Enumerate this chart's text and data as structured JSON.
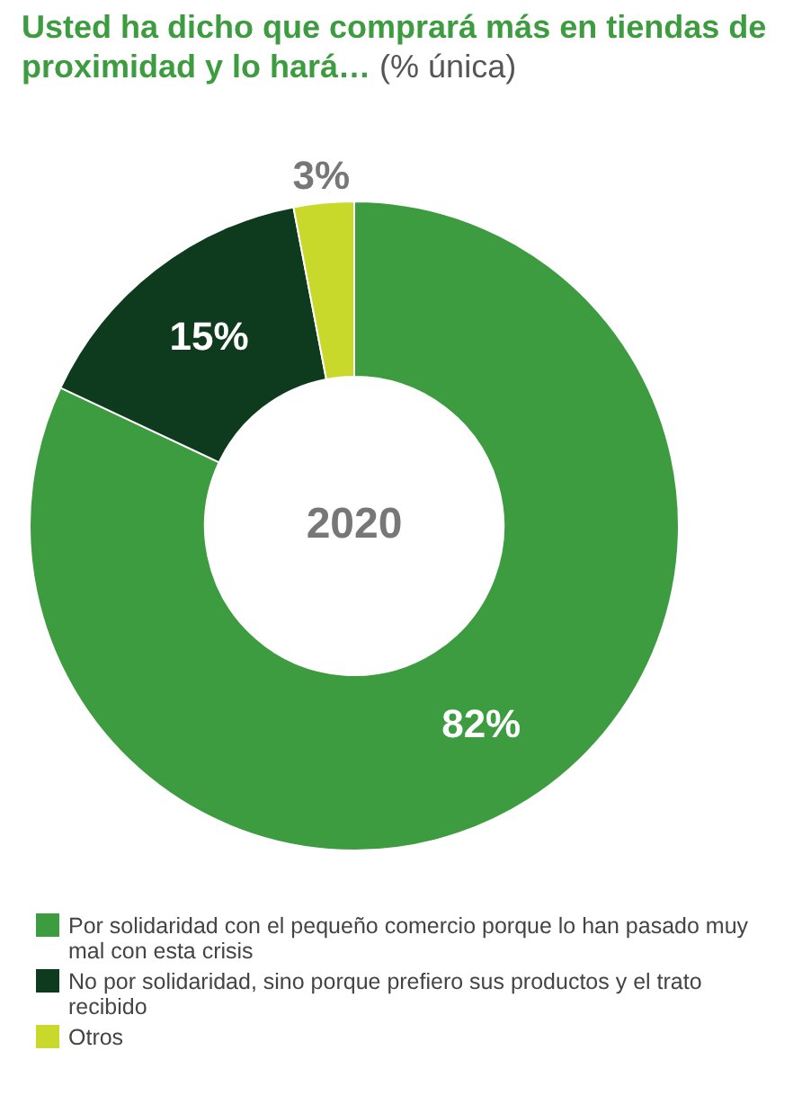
{
  "chart_data": {
    "type": "donut",
    "title": "Usted ha dicho que comprará más en tiendas de proximidad y lo hará…",
    "subtitle": "(% única)",
    "categories": [
      "Por solidaridad con el pequeño comercio porque lo han pasado muy mal con esta crisis",
      "No por solidaridad, sino porque prefiero sus productos y el trato recibido",
      "Otros"
    ],
    "values": [
      82,
      15,
      3
    ],
    "colors": [
      "#3d9b40",
      "#0e3a1d",
      "#c9d92c"
    ],
    "value_labels": [
      "82%",
      "15%",
      "3%"
    ],
    "annotations": [
      "2020"
    ],
    "legend": "bottom"
  }
}
